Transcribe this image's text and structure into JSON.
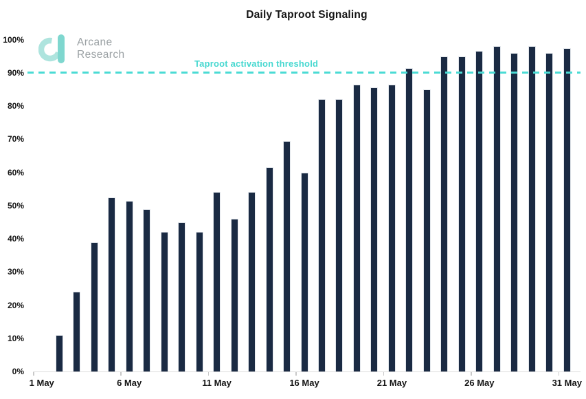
{
  "header": {
    "title": "Daily Taproot Signaling"
  },
  "branding": {
    "line1": "Arcane",
    "line2": "Research"
  },
  "threshold": {
    "label": "Taproot activation threshold"
  },
  "colors": {
    "bar": "#1a2a43",
    "threshold_line": "#4adbd4",
    "threshold_text": "#46d8d0",
    "logo_ring": "#aee4de",
    "logo_bar": "#7fd7cf",
    "brand_text": "#9aa0a3",
    "axis_line": "#dcdcdc",
    "text": "#141414"
  },
  "chart_data": {
    "type": "bar",
    "title": "Daily Taproot Signaling",
    "xlabel": "",
    "ylabel": "",
    "ylim": [
      0,
      100
    ],
    "grid": false,
    "legend": false,
    "categories": [
      "1 May",
      "2 May",
      "3 May",
      "4 May",
      "5 May",
      "6 May",
      "7 May",
      "8 May",
      "9 May",
      "10 May",
      "11 May",
      "12 May",
      "13 May",
      "14 May",
      "15 May",
      "16 May",
      "17 May",
      "18 May",
      "19 May",
      "20 May",
      "21 May",
      "22 May",
      "23 May",
      "24 May",
      "25 May",
      "26 May",
      "27 May",
      "28 May",
      "29 May",
      "30 May",
      "31 May"
    ],
    "values": [
      0,
      11,
      24,
      39,
      52.5,
      51.5,
      49,
      42,
      45,
      42,
      54,
      46,
      54,
      61.5,
      69.5,
      60,
      82,
      82,
      86.5,
      85.5,
      86.5,
      91.5,
      85,
      95,
      95,
      96.5,
      98,
      96,
      98,
      96,
      97.5
    ],
    "ytick_labels": [
      "0%",
      "10%",
      "20%",
      "30%",
      "40%",
      "50%",
      "60%",
      "70%",
      "80%",
      "90%",
      "100%"
    ],
    "xticks": [
      {
        "label": "1 May",
        "day": 1
      },
      {
        "label": "6 May",
        "day": 6
      },
      {
        "label": "11 May",
        "day": 11
      },
      {
        "label": "16 May",
        "day": 16
      },
      {
        "label": "21 May",
        "day": 21
      },
      {
        "label": "26 May",
        "day": 26
      },
      {
        "label": "31 May",
        "day": 31
      }
    ],
    "threshold_line": {
      "value": 90,
      "label": "Taproot activation threshold",
      "style": "dashed"
    }
  }
}
